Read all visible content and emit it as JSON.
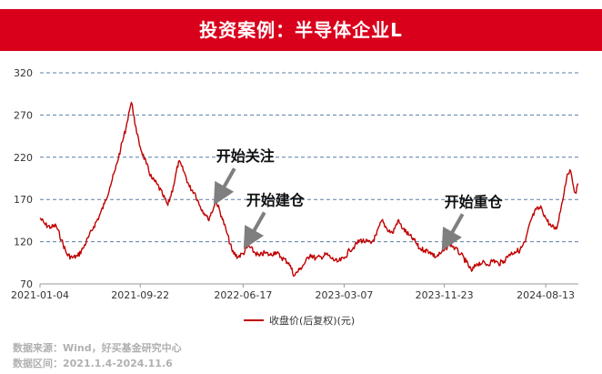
{
  "title": "投资案例：半导体企业L",
  "colors": {
    "banner": "#d9001b",
    "line": "#c00000",
    "grid": "#5b7fa6",
    "arrow": "#7f7f7f"
  },
  "chart_data": {
    "type": "line",
    "title": "投资案例：半导体企业L",
    "xlabel": "",
    "ylabel": "",
    "xlim": [
      "2021-01-04",
      "2024-11-06"
    ],
    "ylim": [
      70,
      320
    ],
    "yticks": [
      70,
      120,
      170,
      220,
      270,
      320
    ],
    "xticks": [
      "2021-01-04",
      "2021-09-22",
      "2022-06-17",
      "2023-03-07",
      "2023-11-23",
      "2024-08-13"
    ],
    "grid": "horizontal-dashed",
    "legend_position": "bottom",
    "series": [
      {
        "name": "收盘价(后复权)(元)",
        "points": [
          [
            "2021-01-04",
            148
          ],
          [
            "2021-01-18",
            140
          ],
          [
            "2021-02-01",
            137
          ],
          [
            "2021-02-15",
            139
          ],
          [
            "2021-03-01",
            122
          ],
          [
            "2021-03-15",
            105
          ],
          [
            "2021-03-29",
            101
          ],
          [
            "2021-04-12",
            103
          ],
          [
            "2021-04-26",
            112
          ],
          [
            "2021-05-10",
            125
          ],
          [
            "2021-05-24",
            138
          ],
          [
            "2021-06-07",
            150
          ],
          [
            "2021-06-21",
            165
          ],
          [
            "2021-07-05",
            185
          ],
          [
            "2021-07-19",
            205
          ],
          [
            "2021-08-02",
            230
          ],
          [
            "2021-08-16",
            255
          ],
          [
            "2021-08-23",
            272
          ],
          [
            "2021-08-30",
            285
          ],
          [
            "2021-09-06",
            268
          ],
          [
            "2021-09-13",
            248
          ],
          [
            "2021-09-22",
            232
          ],
          [
            "2021-10-08",
            212
          ],
          [
            "2021-10-22",
            195
          ],
          [
            "2021-11-05",
            188
          ],
          [
            "2021-11-19",
            176
          ],
          [
            "2021-12-03",
            163
          ],
          [
            "2021-12-17",
            185
          ],
          [
            "2021-12-31",
            215
          ],
          [
            "2022-01-14",
            203
          ],
          [
            "2022-01-28",
            185
          ],
          [
            "2022-02-11",
            178
          ],
          [
            "2022-02-25",
            162
          ],
          [
            "2022-03-11",
            152
          ],
          [
            "2022-03-18",
            146
          ],
          [
            "2022-04-01",
            160
          ],
          [
            "2022-04-08",
            168
          ],
          [
            "2022-04-22",
            150
          ],
          [
            "2022-05-06",
            130
          ],
          [
            "2022-05-20",
            108
          ],
          [
            "2022-06-03",
            102
          ],
          [
            "2022-06-17",
            106
          ],
          [
            "2022-07-01",
            115
          ],
          [
            "2022-07-15",
            108
          ],
          [
            "2022-07-29",
            103
          ],
          [
            "2022-08-12",
            107
          ],
          [
            "2022-08-26",
            104
          ],
          [
            "2022-09-09",
            108
          ],
          [
            "2022-09-23",
            102
          ],
          [
            "2022-10-14",
            95
          ],
          [
            "2022-10-28",
            80
          ],
          [
            "2022-11-11",
            87
          ],
          [
            "2022-11-25",
            95
          ],
          [
            "2022-12-09",
            105
          ],
          [
            "2022-12-23",
            100
          ],
          [
            "2023-01-06",
            102
          ],
          [
            "2023-01-20",
            105
          ],
          [
            "2023-02-03",
            100
          ],
          [
            "2023-02-17",
            96
          ],
          [
            "2023-03-07",
            100
          ],
          [
            "2023-03-21",
            110
          ],
          [
            "2023-04-04",
            115
          ],
          [
            "2023-04-18",
            122
          ],
          [
            "2023-05-02",
            120
          ],
          [
            "2023-05-16",
            118
          ],
          [
            "2023-05-30",
            128
          ],
          [
            "2023-06-13",
            145
          ],
          [
            "2023-06-27",
            135
          ],
          [
            "2023-07-11",
            130
          ],
          [
            "2023-07-25",
            145
          ],
          [
            "2023-08-08",
            135
          ],
          [
            "2023-08-22",
            128
          ],
          [
            "2023-09-05",
            122
          ],
          [
            "2023-09-19",
            112
          ],
          [
            "2023-10-03",
            110
          ],
          [
            "2023-10-17",
            108
          ],
          [
            "2023-10-31",
            102
          ],
          [
            "2023-11-14",
            106
          ],
          [
            "2023-11-23",
            110
          ],
          [
            "2023-12-07",
            118
          ],
          [
            "2023-12-21",
            112
          ],
          [
            "2024-01-05",
            105
          ],
          [
            "2024-01-19",
            96
          ],
          [
            "2024-02-02",
            85
          ],
          [
            "2024-02-16",
            94
          ],
          [
            "2024-03-01",
            95
          ],
          [
            "2024-03-15",
            93
          ],
          [
            "2024-03-29",
            98
          ],
          [
            "2024-04-12",
            94
          ],
          [
            "2024-04-26",
            97
          ],
          [
            "2024-05-10",
            105
          ],
          [
            "2024-05-24",
            108
          ],
          [
            "2024-06-07",
            110
          ],
          [
            "2024-06-21",
            120
          ],
          [
            "2024-07-05",
            145
          ],
          [
            "2024-07-19",
            158
          ],
          [
            "2024-08-02",
            160
          ],
          [
            "2024-08-13",
            148
          ],
          [
            "2024-08-27",
            138
          ],
          [
            "2024-09-10",
            135
          ],
          [
            "2024-09-24",
            165
          ],
          [
            "2024-10-08",
            200
          ],
          [
            "2024-10-15",
            205
          ],
          [
            "2024-10-22",
            190
          ],
          [
            "2024-10-29",
            178
          ],
          [
            "2024-11-06",
            188
          ]
        ]
      }
    ],
    "annotations": [
      {
        "text": "开始关注",
        "date": "2022-04-08",
        "value": 170
      },
      {
        "text": "开始建仓",
        "date": "2022-06-25",
        "value": 118
      },
      {
        "text": "开始重仓",
        "date": "2023-11-23",
        "value": 116
      }
    ]
  },
  "footer": {
    "source": "数据来源：Wind，好买基金研究中心",
    "period": "数据区间：2021.1.4-2024.11.6"
  }
}
